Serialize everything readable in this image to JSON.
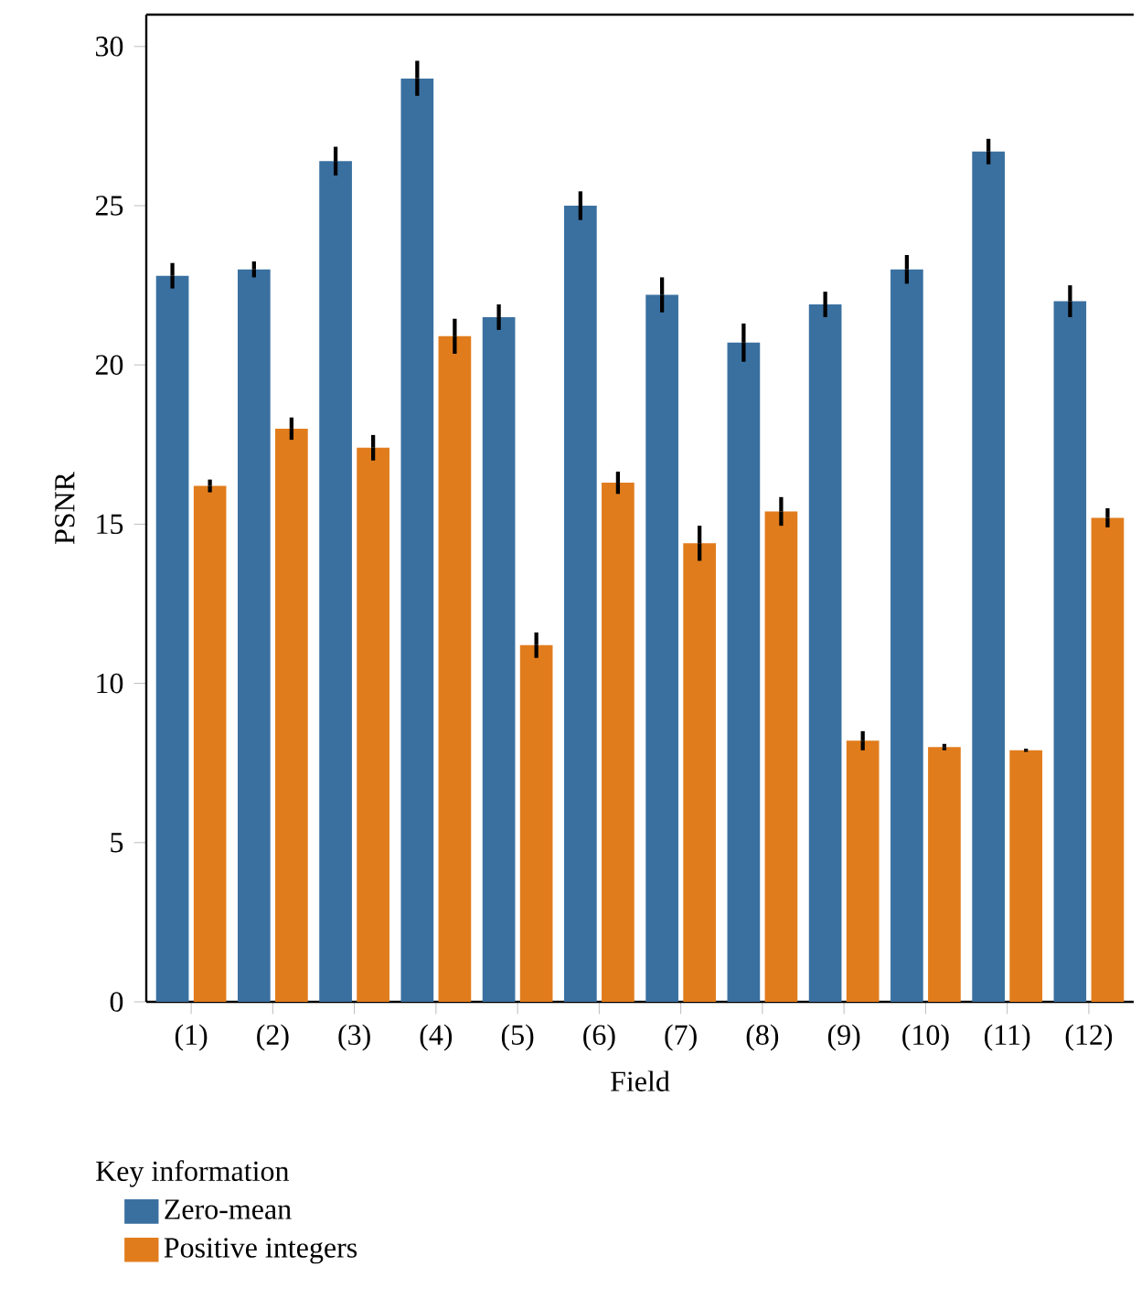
{
  "chart_data": {
    "type": "bar",
    "xlabel": "Field",
    "ylabel": "PSNR",
    "legend_title": "Key information",
    "categories": [
      "(1)",
      "(2)",
      "(3)",
      "(4)",
      "(5)",
      "(6)",
      "(7)",
      "(8)",
      "(9)",
      "(10)",
      "(11)",
      "(12)"
    ],
    "series": [
      {
        "name": "Zero-mean",
        "color": "#3a70a0",
        "values": [
          22.8,
          23.0,
          26.4,
          29.0,
          21.5,
          25.0,
          22.2,
          20.7,
          21.9,
          23.0,
          26.7,
          22.0
        ],
        "errors": [
          0.4,
          0.25,
          0.45,
          0.55,
          0.4,
          0.45,
          0.55,
          0.6,
          0.4,
          0.45,
          0.4,
          0.5
        ]
      },
      {
        "name": "Positive integers",
        "color": "#e17c1c",
        "values": [
          16.2,
          18.0,
          17.4,
          20.9,
          11.2,
          16.3,
          14.4,
          15.4,
          8.2,
          8.0,
          7.9,
          15.2
        ],
        "errors": [
          0.2,
          0.35,
          0.4,
          0.55,
          0.4,
          0.35,
          0.55,
          0.45,
          0.3,
          0.1,
          0.05,
          0.3
        ]
      }
    ],
    "ylim": [
      0,
      31
    ],
    "yticks": [
      0,
      5,
      10,
      15,
      20,
      25,
      30
    ],
    "grid": false,
    "legend": "bottom left"
  }
}
